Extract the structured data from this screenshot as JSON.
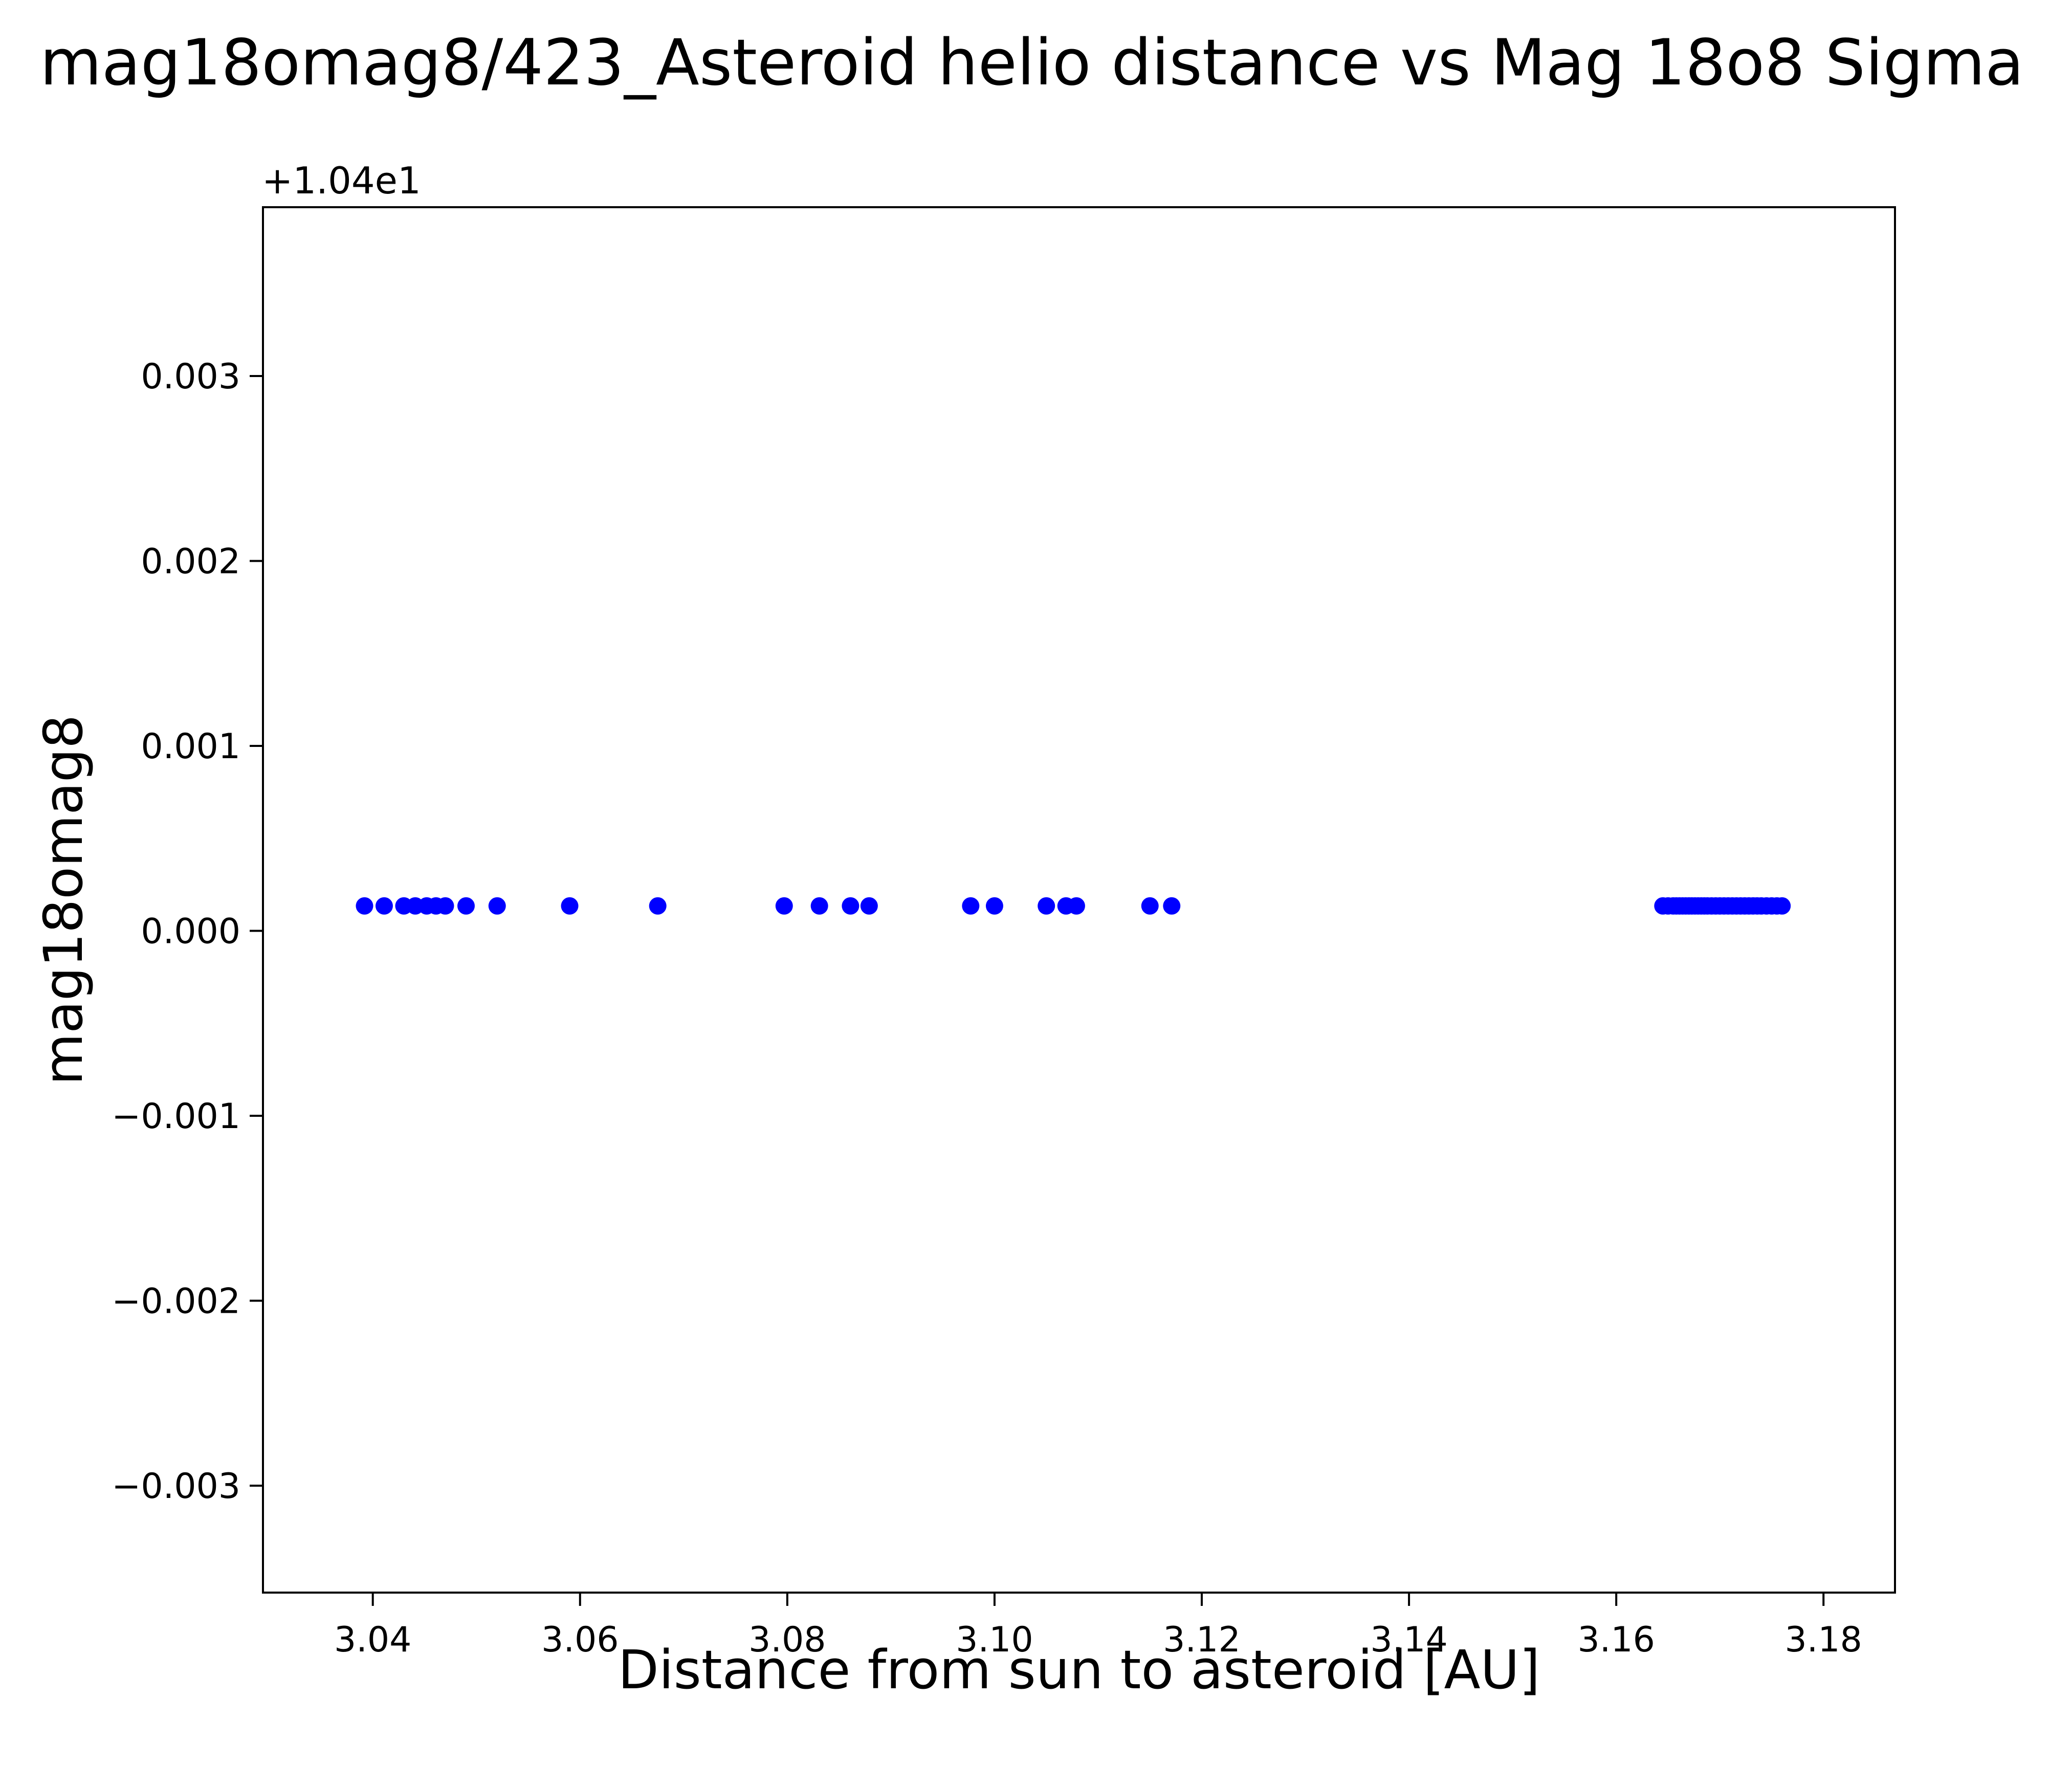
{
  "chart_data": {
    "type": "scatter",
    "title": "mag18omag8/423_Asteroid helio distance vs Mag 18o8 Sigma",
    "xlabel": "Distance from sun to asteroid [AU]",
    "ylabel": "mag18omag8",
    "y_offset_label": "+1.04e1",
    "marker_color": "#0000ff",
    "background_color": "#ffffff",
    "grid": false,
    "legend": "none",
    "xlim": [
      3.0294,
      3.1869
    ],
    "ylim": [
      -0.003578,
      0.003913
    ],
    "xticks": {
      "values": [
        3.04,
        3.06,
        3.08,
        3.1,
        3.12,
        3.14,
        3.16,
        3.18
      ],
      "labels": [
        "3.04",
        "3.06",
        "3.08",
        "3.10",
        "3.12",
        "3.14",
        "3.16",
        "3.18"
      ]
    },
    "yticks": {
      "values": [
        -0.003,
        -0.002,
        -0.001,
        0.0,
        0.001,
        0.002,
        0.003
      ],
      "labels": [
        "−0.003",
        "−0.002",
        "−0.001",
        "0.000",
        "0.001",
        "0.002",
        "0.003"
      ]
    },
    "y_offset_value": 10.4,
    "points_y_constant": 0.000135,
    "points_x": [
      3.0392,
      3.0411,
      3.043,
      3.0441,
      3.0452,
      3.0461,
      3.047,
      3.049,
      3.052,
      3.059,
      3.0675,
      3.0797,
      3.0831,
      3.0861,
      3.0879,
      3.0977,
      3.1,
      3.105,
      3.1069,
      3.1079,
      3.115,
      3.1171,
      3.1645,
      3.165,
      3.1655,
      3.1658,
      3.1661,
      3.1664,
      3.1667,
      3.167,
      3.1673,
      3.1676,
      3.1679,
      3.1682,
      3.1685,
      3.1688,
      3.1692,
      3.1696,
      3.17,
      3.1704,
      3.1708,
      3.1712,
      3.1716,
      3.172,
      3.1724,
      3.1728,
      3.1732,
      3.1736,
      3.174,
      3.1745,
      3.175,
      3.1755,
      3.176
    ]
  }
}
